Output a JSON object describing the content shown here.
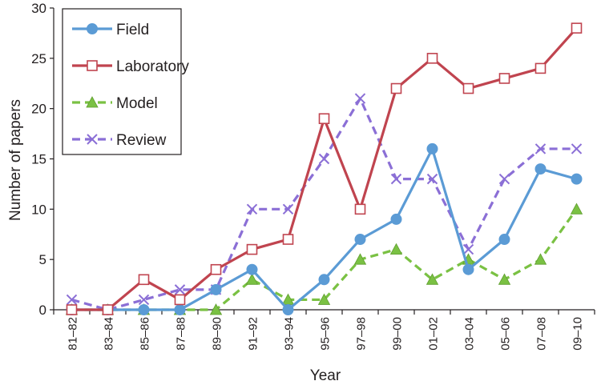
{
  "chart_data": {
    "type": "line",
    "title": "",
    "xlabel": "Year",
    "ylabel": "Number of papers",
    "categories": [
      "81–82",
      "83–84",
      "85–86",
      "87–88",
      "89–90",
      "91–92",
      "93–94",
      "95–96",
      "97–98",
      "99–00",
      "01–02",
      "03–04",
      "05–06",
      "07–08",
      "09–10"
    ],
    "yticks": [
      0,
      5,
      10,
      15,
      20,
      25,
      30
    ],
    "ylim": [
      0,
      30
    ],
    "grid": false,
    "legend_position": "top-left",
    "series": [
      {
        "name": "Field",
        "color": "#5b9bd5",
        "marker": "circle",
        "dash": "solid",
        "values": [
          0,
          0,
          0,
          0,
          2,
          4,
          0,
          3,
          7,
          9,
          16,
          4,
          7,
          14,
          13
        ]
      },
      {
        "name": "Laboratory",
        "color": "#c0444f",
        "marker": "open-square",
        "dash": "solid",
        "values": [
          0,
          0,
          3,
          1,
          4,
          6,
          7,
          19,
          10,
          22,
          25,
          22,
          23,
          24,
          28
        ]
      },
      {
        "name": "Model",
        "color": "#7ac143",
        "marker": "triangle",
        "dash": "dashed",
        "values": [
          0,
          0,
          0,
          0,
          0,
          3,
          1,
          1,
          5,
          6,
          3,
          5,
          3,
          5,
          10
        ]
      },
      {
        "name": "Review",
        "color": "#8b6fd6",
        "marker": "cross",
        "dash": "dashed",
        "values": [
          1,
          0,
          1,
          2,
          2,
          10,
          10,
          15,
          21,
          13,
          13,
          6,
          13,
          16,
          16
        ]
      }
    ]
  }
}
